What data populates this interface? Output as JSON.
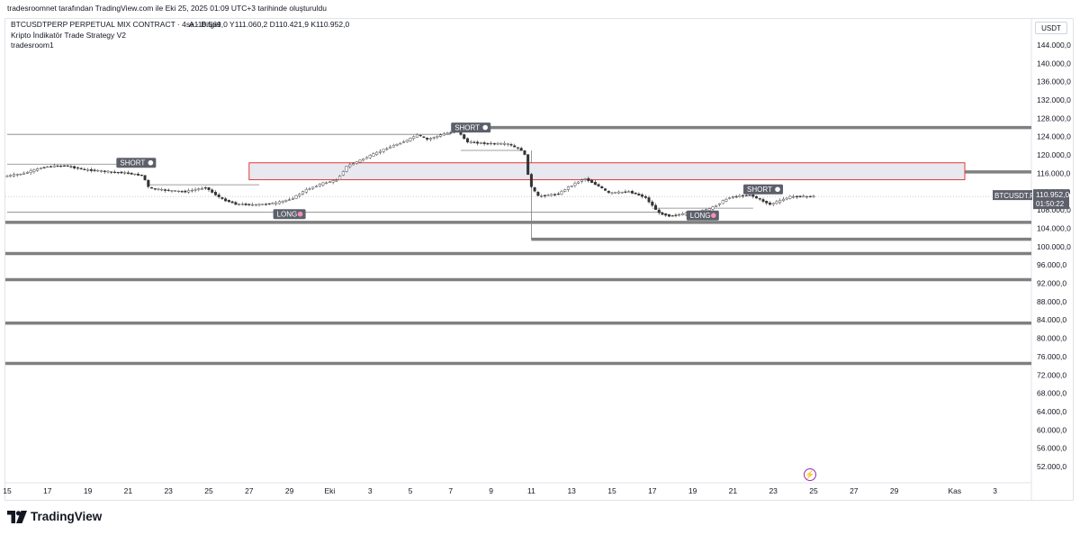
{
  "header": {
    "attribution": "tradesroomnet tarafından TradingView.com ile Eki 25, 2025 01:09 UTC+3 tarihinde oluşturuldu"
  },
  "legend": {
    "symbol_line": "BTCUSDTPERP PERPETUAL MIX CONTRACT · 4sa · Bitget",
    "ohlc_line": "A110.569,0  Y111.060,2  D110.421,9  K110.952,0",
    "indicator": "Kripto İndikatör Trade Strategy V2",
    "author": "tradesroom1"
  },
  "currency": "USDT",
  "brand": {
    "name": "TradingView",
    "icon": "tradingview-logo-icon"
  },
  "price_badge": {
    "symbol": "BTCUSDT.P",
    "price": "110.952,0",
    "countdown": "01:50:22"
  },
  "chart_data": {
    "type": "candlestick",
    "ylim": [
      50000,
      146000
    ],
    "yticks": [
      52000,
      56000,
      60000,
      64000,
      68000,
      72000,
      76000,
      80000,
      84000,
      88000,
      92000,
      96000,
      100000,
      104000,
      108000,
      112000,
      116000,
      120000,
      124000,
      128000,
      132000,
      136000,
      140000,
      144000
    ],
    "ytick_labels": [
      "52.000,0",
      "56.000,0",
      "60.000,0",
      "64.000,0",
      "68.000,0",
      "72.000,0",
      "76.000,0",
      "80.000,0",
      "84.000,0",
      "88.000,0",
      "92.000,0",
      "96.000,0",
      "100.000,0",
      "104.000,0",
      "108.000,0",
      "112.000,0",
      "116.000,0",
      "120.000,0",
      "124.000,0",
      "128.000,0",
      "132.000,0",
      "136.000,0",
      "140.000,0",
      "144.000,0"
    ],
    "xticks": [
      {
        "label": "15",
        "day": 0
      },
      {
        "label": "17",
        "day": 2
      },
      {
        "label": "19",
        "day": 4
      },
      {
        "label": "21",
        "day": 6
      },
      {
        "label": "23",
        "day": 8
      },
      {
        "label": "25",
        "day": 10
      },
      {
        "label": "27",
        "day": 12
      },
      {
        "label": "29",
        "day": 14
      },
      {
        "label": "Eki",
        "day": 16
      },
      {
        "label": "3",
        "day": 18
      },
      {
        "label": "5",
        "day": 20
      },
      {
        "label": "7",
        "day": 22
      },
      {
        "label": "9",
        "day": 24
      },
      {
        "label": "11",
        "day": 26
      },
      {
        "label": "13",
        "day": 28
      },
      {
        "label": "15",
        "day": 30
      },
      {
        "label": "17",
        "day": 32
      },
      {
        "label": "19",
        "day": 34
      },
      {
        "label": "21",
        "day": 36
      },
      {
        "label": "23",
        "day": 38
      },
      {
        "label": "25",
        "day": 40
      },
      {
        "label": "27",
        "day": 42
      },
      {
        "label": "29",
        "day": 44
      },
      {
        "label": "Kas",
        "day": 47
      },
      {
        "label": "3",
        "day": 49
      }
    ],
    "price_path": [
      [
        0,
        115300
      ],
      [
        1,
        116000
      ],
      [
        2,
        117400
      ],
      [
        3,
        117700
      ],
      [
        4,
        116800
      ],
      [
        5,
        116400
      ],
      [
        6,
        116100
      ],
      [
        6.9,
        115500
      ],
      [
        7.2,
        112700
      ],
      [
        8,
        112300
      ],
      [
        9,
        112000
      ],
      [
        10,
        112900
      ],
      [
        10.8,
        110400
      ],
      [
        11.5,
        109300
      ],
      [
        12.5,
        109100
      ],
      [
        13.5,
        109500
      ],
      [
        14.3,
        110500
      ],
      [
        15,
        112400
      ],
      [
        15.8,
        113800
      ],
      [
        16.5,
        114500
      ],
      [
        17,
        117500
      ],
      [
        18,
        119500
      ],
      [
        19,
        121500
      ],
      [
        20,
        123200
      ],
      [
        20.5,
        124400
      ],
      [
        21,
        123400
      ],
      [
        22,
        124800
      ],
      [
        22.5,
        125200
      ],
      [
        23,
        122800
      ],
      [
        24,
        122500
      ],
      [
        25,
        122400
      ],
      [
        25.8,
        120800
      ],
      [
        26.1,
        113400
      ],
      [
        26.5,
        111000
      ],
      [
        27.5,
        111500
      ],
      [
        28,
        113000
      ],
      [
        28.8,
        114900
      ],
      [
        29.5,
        113200
      ],
      [
        30,
        111700
      ],
      [
        31,
        112000
      ],
      [
        31.8,
        110800
      ],
      [
        32.5,
        107300
      ],
      [
        33,
        106700
      ],
      [
        34,
        107300
      ],
      [
        35,
        108200
      ],
      [
        36,
        110800
      ],
      [
        37,
        111300
      ],
      [
        38,
        109200
      ],
      [
        39,
        110900
      ],
      [
        40,
        110952
      ]
    ],
    "levels": [
      126000,
      116300,
      105300,
      101600,
      98500,
      92800,
      83300,
      74500
    ],
    "thin_lines": [
      {
        "price": 124500,
        "from": 0,
        "to": 22
      },
      {
        "price": 118000,
        "from": 0,
        "to": 7
      },
      {
        "price": 113500,
        "from": 7,
        "to": 12.5
      },
      {
        "price": 107500,
        "from": 0,
        "to": 32.5
      },
      {
        "price": 121000,
        "from": 22.5,
        "to": 25.5
      },
      {
        "price": 108400,
        "from": 32,
        "to": 37
      }
    ],
    "zone": {
      "from_day": 12,
      "to_day": 47.5,
      "top": 118300,
      "bottom": 114600
    },
    "signals": [
      {
        "label": "SHORT",
        "day": 6.4,
        "price": 118300
      },
      {
        "label": "SHORT",
        "day": 23,
        "price": 126000
      },
      {
        "label": "LONG",
        "day": 14,
        "price": 107100
      },
      {
        "label": "SHORT",
        "day": 37.5,
        "price": 112500
      },
      {
        "label": "LONG",
        "day": 34.5,
        "price": 106800
      }
    ]
  }
}
